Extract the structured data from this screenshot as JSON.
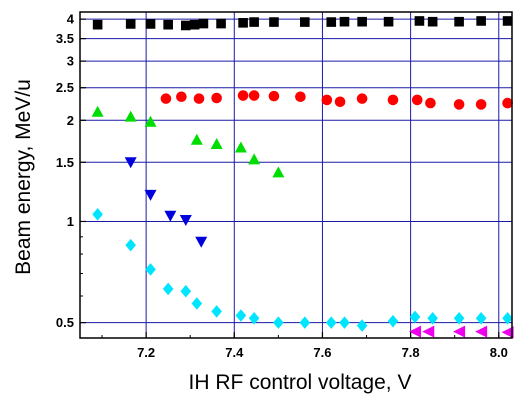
{
  "chart_data": {
    "type": "scatter",
    "title": "",
    "xlabel": "IH RF control voltage, V",
    "ylabel": "Beam energy, MeV/u",
    "xlim": [
      7.05,
      8.03
    ],
    "ylim": [
      0.45,
      4.2
    ],
    "yscale": "log",
    "grid": true,
    "x_ticks": [
      7.2,
      7.4,
      7.6,
      7.8,
      8.0
    ],
    "x_tick_labels": [
      "7.2",
      "7.4",
      "7.6",
      "7.8",
      "8.0"
    ],
    "y_ticks": [
      0.5,
      1,
      1.5,
      2,
      2.5,
      3,
      3.5,
      4
    ],
    "y_tick_labels": [
      "0.5",
      "1",
      "1.5",
      "2",
      "2.5",
      "3",
      "3.5",
      "4"
    ],
    "series": [
      {
        "marker": "square",
        "color": "#000000",
        "x": [
          7.09,
          7.165,
          7.21,
          7.25,
          7.29,
          7.31,
          7.33,
          7.37,
          7.42,
          7.445,
          7.49,
          7.56,
          7.62,
          7.65,
          7.69,
          7.75,
          7.82,
          7.85,
          7.91,
          7.96,
          8.02
        ],
        "y": [
          3.85,
          3.87,
          3.87,
          3.85,
          3.83,
          3.85,
          3.88,
          3.88,
          3.9,
          3.92,
          3.92,
          3.92,
          3.92,
          3.93,
          3.93,
          3.93,
          3.95,
          3.93,
          3.93,
          3.95,
          3.95
        ]
      },
      {
        "marker": "circle",
        "color": "#ff0000",
        "x": [
          7.245,
          7.28,
          7.32,
          7.36,
          7.42,
          7.445,
          7.49,
          7.55,
          7.61,
          7.64,
          7.69,
          7.76,
          7.815,
          7.845,
          7.91,
          7.96,
          8.02
        ],
        "y": [
          2.32,
          2.35,
          2.32,
          2.33,
          2.37,
          2.37,
          2.36,
          2.35,
          2.3,
          2.27,
          2.32,
          2.3,
          2.3,
          2.25,
          2.23,
          2.23,
          2.25
        ]
      },
      {
        "marker": "triangle-up",
        "color": "#00dd00",
        "x": [
          7.09,
          7.165,
          7.21,
          7.315,
          7.36,
          7.415,
          7.445,
          7.5
        ],
        "y": [
          2.12,
          2.05,
          1.98,
          1.75,
          1.7,
          1.66,
          1.53,
          1.4
        ]
      },
      {
        "marker": "triangle-down",
        "color": "#0000dd",
        "x": [
          7.165,
          7.21,
          7.255,
          7.29,
          7.325
        ],
        "y": [
          1.5,
          1.2,
          1.04,
          1.01,
          0.87
        ]
      },
      {
        "marker": "diamond",
        "color": "#00e5ff",
        "x": [
          7.09,
          7.165,
          7.21,
          7.25,
          7.29,
          7.315,
          7.36,
          7.415,
          7.445,
          7.5,
          7.56,
          7.62,
          7.65,
          7.69,
          7.76,
          7.81,
          7.85,
          7.91,
          7.96,
          8.02
        ],
        "y": [
          1.05,
          0.85,
          0.72,
          0.63,
          0.62,
          0.57,
          0.54,
          0.525,
          0.515,
          0.5,
          0.5,
          0.5,
          0.5,
          0.49,
          0.505,
          0.52,
          0.515,
          0.515,
          0.515,
          0.515
        ]
      },
      {
        "marker": "triangle-left",
        "color": "#ee00ee",
        "x": [
          7.81,
          7.84,
          7.91,
          7.96,
          8.02
        ],
        "y": [
          0.47,
          0.47,
          0.47,
          0.47,
          0.468
        ]
      }
    ]
  }
}
